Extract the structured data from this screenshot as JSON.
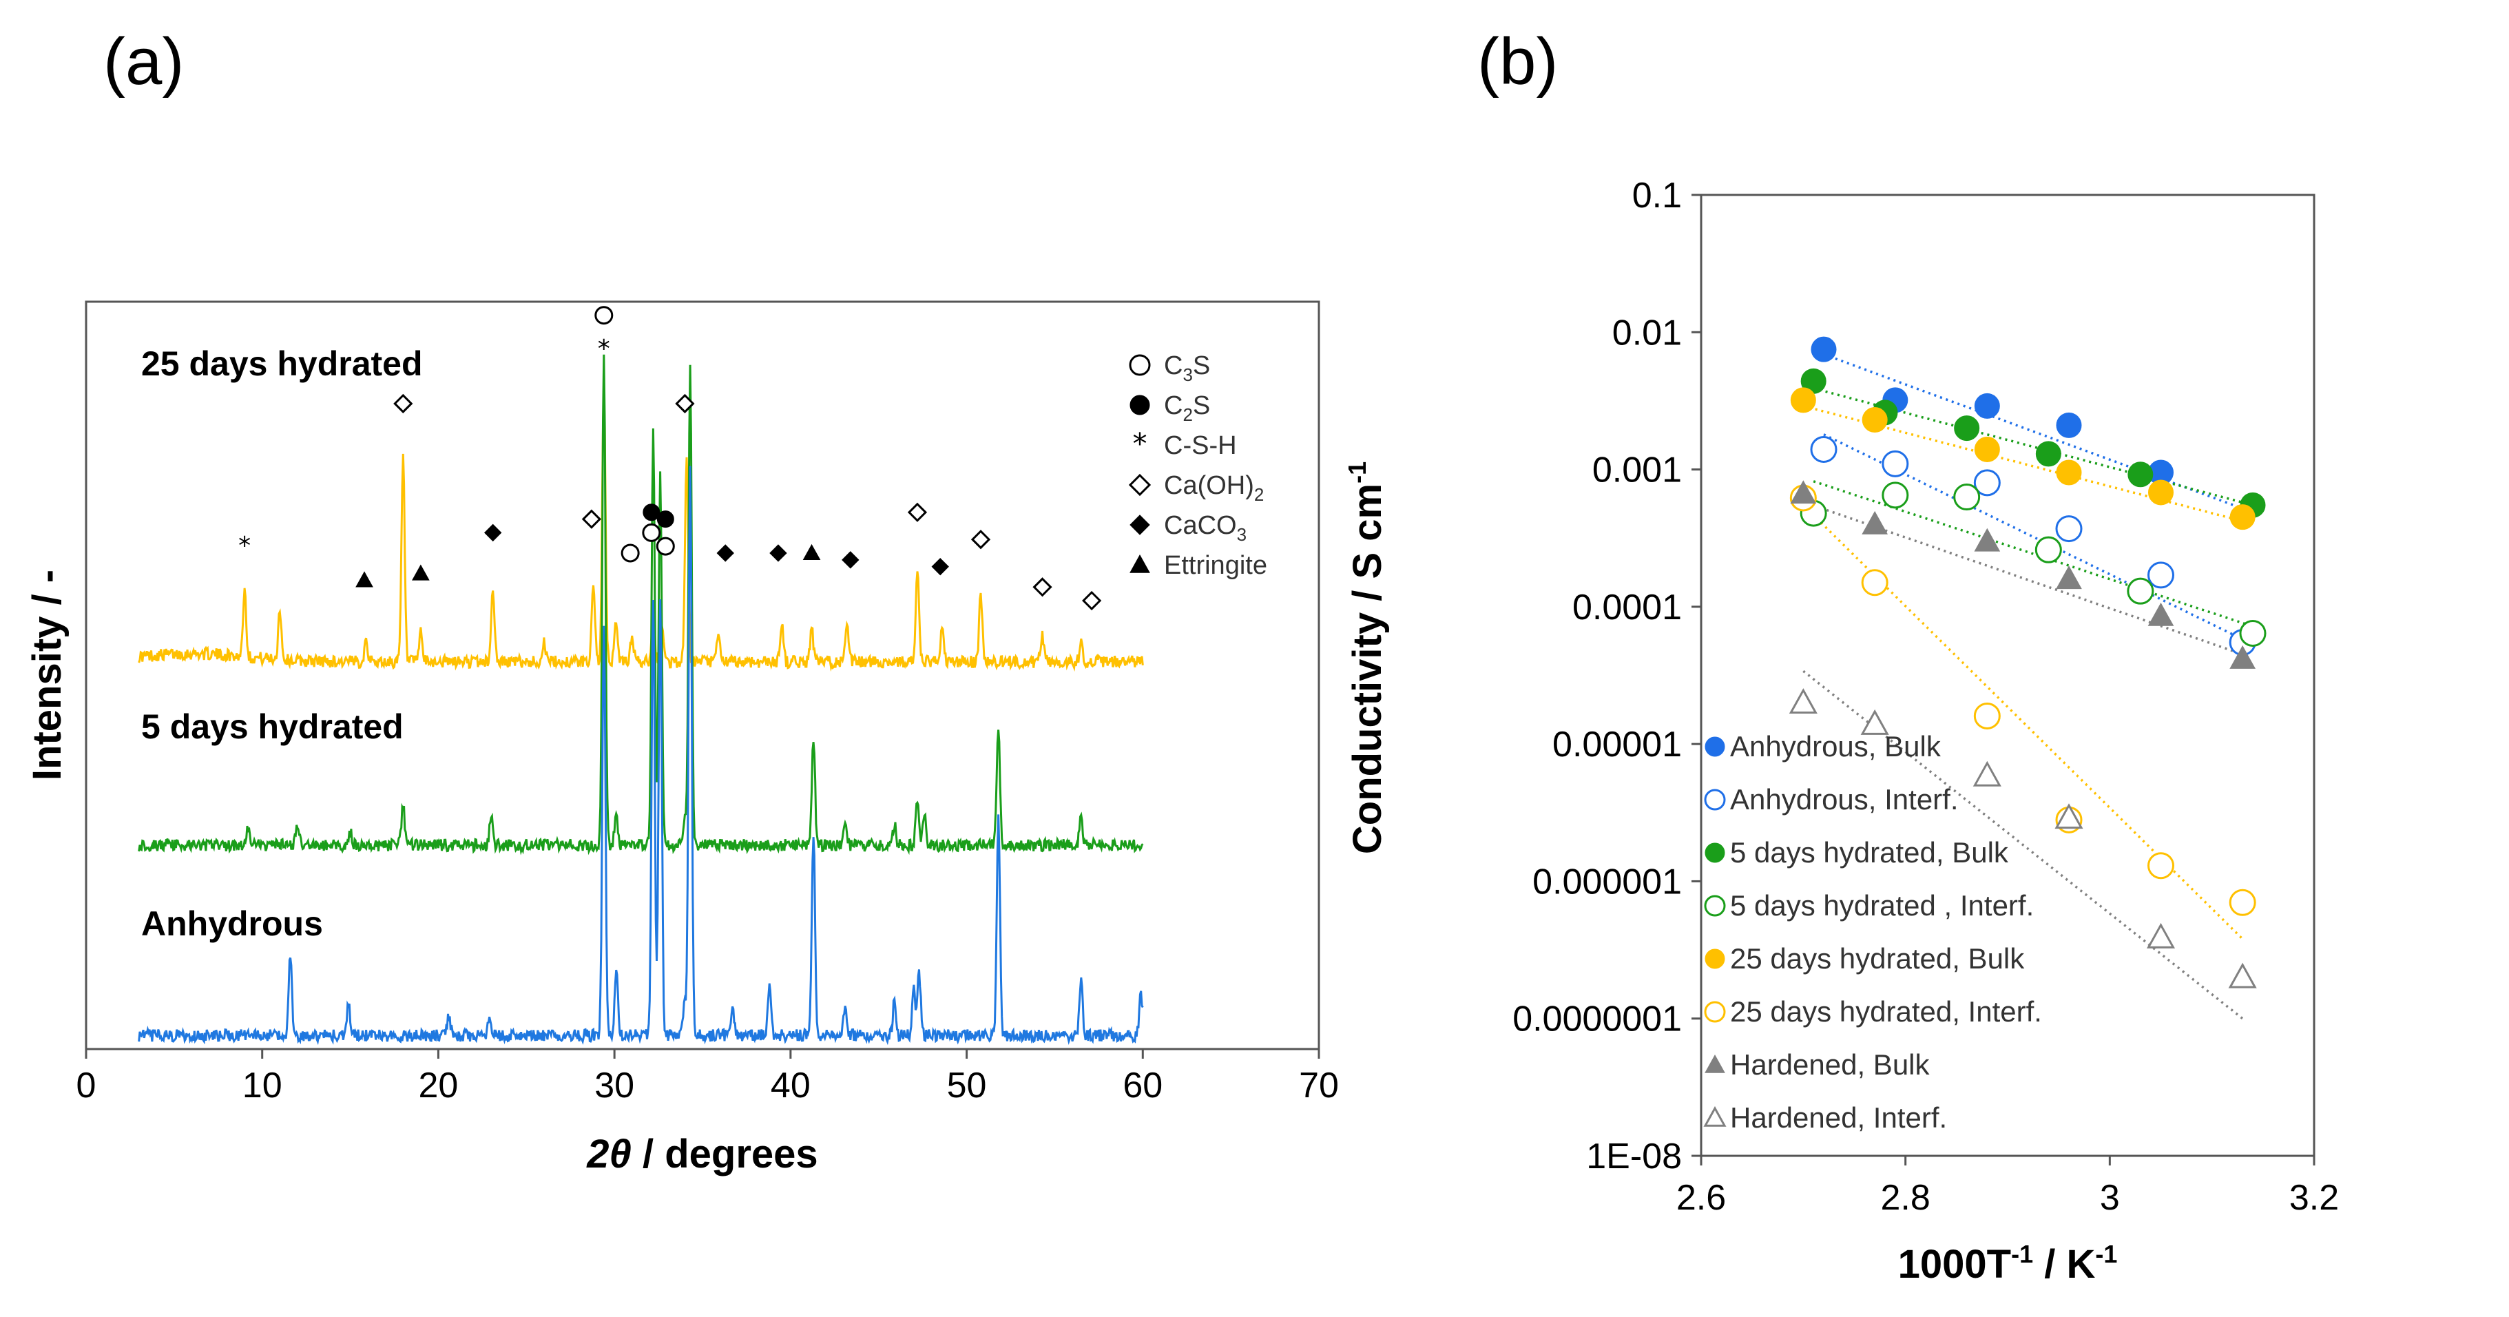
{
  "panel_a_label": "(a)",
  "panel_b_label": "(b)",
  "chart_data": [
    {
      "type": "line",
      "title": "",
      "xlabel_italic": "2θ",
      "xlabel_rest": " / degrees",
      "ylabel": "Intensity / -",
      "xlim": [
        0,
        70
      ],
      "xticks": [
        "0",
        "10",
        "20",
        "30",
        "40",
        "50",
        "60",
        "70"
      ],
      "ylim": [
        0,
        11
      ],
      "series": [
        {
          "name": "25 days hydrated",
          "color": "#FFC000",
          "baseline": 5.7,
          "peaks": [
            [
              9.0,
              1.0
            ],
            [
              11.0,
              0.75
            ],
            [
              15.9,
              0.35
            ],
            [
              18.0,
              3.0
            ],
            [
              19.0,
              0.45
            ],
            [
              23.1,
              1.1
            ],
            [
              26.0,
              0.3
            ],
            [
              28.8,
              1.2
            ],
            [
              29.4,
              4.0
            ],
            [
              30.1,
              0.6
            ],
            [
              31.0,
              0.4
            ],
            [
              32.2,
              0.7
            ],
            [
              32.7,
              0.6
            ],
            [
              34.1,
              3.0
            ],
            [
              35.9,
              0.4
            ],
            [
              39.5,
              0.6
            ],
            [
              41.2,
              0.5
            ],
            [
              43.2,
              0.5
            ],
            [
              47.2,
              1.35
            ],
            [
              48.6,
              0.5
            ],
            [
              50.8,
              1.0
            ],
            [
              54.3,
              0.4
            ],
            [
              56.5,
              0.3
            ]
          ]
        },
        {
          "name": "5 days hydrated",
          "color": "#1A9E1A",
          "baseline": 3.0,
          "peaks": [
            [
              9.2,
              0.25
            ],
            [
              12.0,
              0.3
            ],
            [
              15.0,
              0.2
            ],
            [
              18.0,
              0.6
            ],
            [
              23.0,
              0.4
            ],
            [
              29.4,
              7.2
            ],
            [
              30.1,
              0.5
            ],
            [
              32.2,
              6.1
            ],
            [
              32.6,
              5.5
            ],
            [
              34.3,
              7.0
            ],
            [
              34.0,
              0.4
            ],
            [
              41.3,
              1.6
            ],
            [
              43.1,
              0.3
            ],
            [
              45.9,
              0.3
            ],
            [
              47.2,
              0.7
            ],
            [
              47.6,
              0.5
            ],
            [
              51.8,
              1.7
            ],
            [
              56.5,
              0.4
            ]
          ]
        },
        {
          "name": "Anhydrous",
          "color": "#1F78E0",
          "baseline": 0.2,
          "peaks": [
            [
              11.6,
              1.2
            ],
            [
              14.9,
              0.5
            ],
            [
              20.6,
              0.3
            ],
            [
              22.9,
              0.3
            ],
            [
              29.4,
              6.0
            ],
            [
              30.1,
              1.0
            ],
            [
              32.2,
              6.5
            ],
            [
              32.6,
              6.5
            ],
            [
              34.3,
              8.3
            ],
            [
              34.0,
              0.5
            ],
            [
              36.7,
              0.4
            ],
            [
              38.8,
              0.7
            ],
            [
              41.3,
              3.0
            ],
            [
              43.1,
              0.4
            ],
            [
              45.9,
              0.5
            ],
            [
              47.0,
              0.7
            ],
            [
              47.3,
              0.9
            ],
            [
              51.8,
              3.2
            ],
            [
              56.5,
              0.8
            ],
            [
              59.9,
              0.6
            ]
          ]
        }
      ],
      "trace_labels": [
        "25 days hydrated",
        "5 days hydrated",
        "Anhydrous"
      ],
      "annotations": [
        {
          "symbol": "open_circle",
          "x": 29.4,
          "y": 10.8
        },
        {
          "symbol": "star",
          "x": 29.4,
          "y": 10.3
        },
        {
          "symbol": "open_circle",
          "x": 32.1,
          "y": 7.6
        },
        {
          "symbol": "open_circle",
          "x": 32.9,
          "y": 7.4
        },
        {
          "symbol": "open_circle",
          "x": 30.9,
          "y": 7.3
        },
        {
          "symbol": "filled_circle",
          "x": 32.1,
          "y": 7.9
        },
        {
          "symbol": "filled_circle",
          "x": 32.9,
          "y": 7.8
        },
        {
          "symbol": "star",
          "x": 9.0,
          "y": 7.4
        },
        {
          "symbol": "open_diamond",
          "x": 18.0,
          "y": 9.5
        },
        {
          "symbol": "open_diamond",
          "x": 34.0,
          "y": 9.5
        },
        {
          "symbol": "open_diamond",
          "x": 28.7,
          "y": 7.8
        },
        {
          "symbol": "open_diamond",
          "x": 47.2,
          "y": 7.9
        },
        {
          "symbol": "open_diamond",
          "x": 50.8,
          "y": 7.5
        },
        {
          "symbol": "open_diamond",
          "x": 54.3,
          "y": 6.8
        },
        {
          "symbol": "open_diamond",
          "x": 57.1,
          "y": 6.6
        },
        {
          "symbol": "filled_diamond",
          "x": 23.1,
          "y": 7.6
        },
        {
          "symbol": "filled_diamond",
          "x": 36.3,
          "y": 7.3
        },
        {
          "symbol": "filled_diamond",
          "x": 39.3,
          "y": 7.3
        },
        {
          "symbol": "filled_diamond",
          "x": 43.4,
          "y": 7.2
        },
        {
          "symbol": "filled_diamond",
          "x": 48.5,
          "y": 7.1
        },
        {
          "symbol": "filled_triangle",
          "x": 15.8,
          "y": 6.9
        },
        {
          "symbol": "filled_triangle",
          "x": 19.0,
          "y": 7.0
        },
        {
          "symbol": "filled_triangle",
          "x": 41.2,
          "y": 7.3
        }
      ],
      "legend": [
        {
          "symbol": "open_circle",
          "label": "C",
          "sub": "3",
          "tail": "S"
        },
        {
          "symbol": "filled_circle",
          "label": "C",
          "sub": "2",
          "tail": "S"
        },
        {
          "symbol": "star",
          "label": "C-S-H",
          "sub": "",
          "tail": ""
        },
        {
          "symbol": "open_diamond",
          "label": "Ca(OH)",
          "sub": "2",
          "tail": ""
        },
        {
          "symbol": "filled_diamond",
          "label": "CaCO",
          "sub": "3",
          "tail": ""
        },
        {
          "symbol": "filled_triangle",
          "label": "Ettringite",
          "sub": "",
          "tail": ""
        }
      ]
    },
    {
      "type": "scatter",
      "title": "",
      "xlabel": "1000T",
      "xlabel_sup1": "-1",
      "xlabel_mid": " / K",
      "xlabel_sup2": "-1",
      "ylabel": "Conductivity / S cm",
      "ylabel_sup": "-1",
      "xlim": [
        2.6,
        3.2
      ],
      "xticks": [
        2.6,
        2.8,
        3.0,
        3.2
      ],
      "xtick_labels": [
        "2.6",
        "2.8",
        "3",
        "3.2"
      ],
      "ylim_log10": [
        -8,
        -1
      ],
      "ytick_labels": [
        "0.1",
        "0.01",
        "0.001",
        "0.0001",
        "0.00001",
        "0.000001",
        "0.0000001",
        "1E-08"
      ],
      "series": [
        {
          "name": "Anhydrous, Bulk",
          "color": "#1F6FE8",
          "marker": "circle",
          "filled": true,
          "x": [
            2.72,
            2.79,
            2.88,
            2.96,
            3.05
          ],
          "y": [
            0.0075,
            0.0032,
            0.0029,
            0.0021,
            0.00095
          ],
          "fit": [
            [
              2.72,
              0.0069
            ],
            [
              3.13,
              0.00052
            ]
          ]
        },
        {
          "name": "Anhydrous, Interf.",
          "color": "#1F6FE8",
          "marker": "circle",
          "filled": false,
          "x": [
            2.72,
            2.79,
            2.88,
            2.96,
            3.05,
            3.13
          ],
          "y": [
            0.0014,
            0.0011,
            0.0008,
            0.00037,
            0.00017,
            5.5e-05
          ],
          "fit": [
            [
              2.72,
              0.0018
            ],
            [
              3.13,
              5.8e-05
            ]
          ]
        },
        {
          "name": "5 days hydrated, Bulk",
          "color": "#1A9E1A",
          "marker": "circle",
          "filled": true,
          "x": [
            2.71,
            2.78,
            2.86,
            2.94,
            3.03,
            3.14
          ],
          "y": [
            0.0044,
            0.0026,
            0.002,
            0.0013,
            0.00092,
            0.00055
          ],
          "fit": [
            [
              2.71,
              0.0039
            ],
            [
              3.14,
              0.00055
            ]
          ]
        },
        {
          "name": "5 days hydrated , Interf.",
          "color": "#1A9E1A",
          "marker": "circle",
          "filled": false,
          "x": [
            2.71,
            2.79,
            2.86,
            2.94,
            3.03,
            3.14
          ],
          "y": [
            0.00048,
            0.00065,
            0.00063,
            0.00026,
            0.00013,
            6.4e-05
          ],
          "fit": [
            [
              2.71,
              0.00082
            ],
            [
              3.14,
              7.2e-05
            ]
          ]
        },
        {
          "name": "25 days hydrated, Bulk",
          "color": "#FFC000",
          "marker": "circle",
          "filled": true,
          "x": [
            2.7,
            2.77,
            2.88,
            2.96,
            3.05,
            3.13
          ],
          "y": [
            0.0032,
            0.0023,
            0.0014,
            0.00095,
            0.00068,
            0.00045
          ],
          "fit": [
            [
              2.7,
              0.0029
            ],
            [
              3.13,
              0.00042
            ]
          ]
        },
        {
          "name": "25 days hydrated, Interf.",
          "color": "#FFC000",
          "marker": "circle",
          "filled": false,
          "x": [
            2.7,
            2.77,
            2.88,
            2.96,
            3.05,
            3.13
          ],
          "y": [
            0.00062,
            0.00015,
            1.6e-05,
            2.8e-06,
            1.3e-06,
            7e-07
          ],
          "fit": [
            [
              2.7,
              0.00055
            ],
            [
              3.13,
              3.8e-07
            ]
          ]
        },
        {
          "name": "Hardened, Bulk",
          "color": "#808080",
          "marker": "triangle",
          "filled": true,
          "x": [
            2.7,
            2.77,
            2.88,
            2.96,
            3.05,
            3.13
          ],
          "y": [
            0.00067,
            0.0004,
            0.0003,
            0.00016,
            8.6e-05,
            4.2e-05
          ],
          "fit": [
            [
              2.7,
              0.00058
            ],
            [
              3.13,
              4.5e-05
            ]
          ]
        },
        {
          "name": "Hardened, Interf.",
          "color": "#808080",
          "marker": "triangle",
          "filled": false,
          "x": [
            2.7,
            2.77,
            2.88,
            2.96,
            3.05,
            3.13
          ],
          "y": [
            2e-05,
            1.4e-05,
            5.9e-06,
            2.9e-06,
            3.9e-07,
            2e-07
          ],
          "fit": [
            [
              2.7,
              3.4e-05
            ],
            [
              3.13,
              1e-07
            ]
          ]
        }
      ],
      "legend_location": "lower-left"
    }
  ]
}
